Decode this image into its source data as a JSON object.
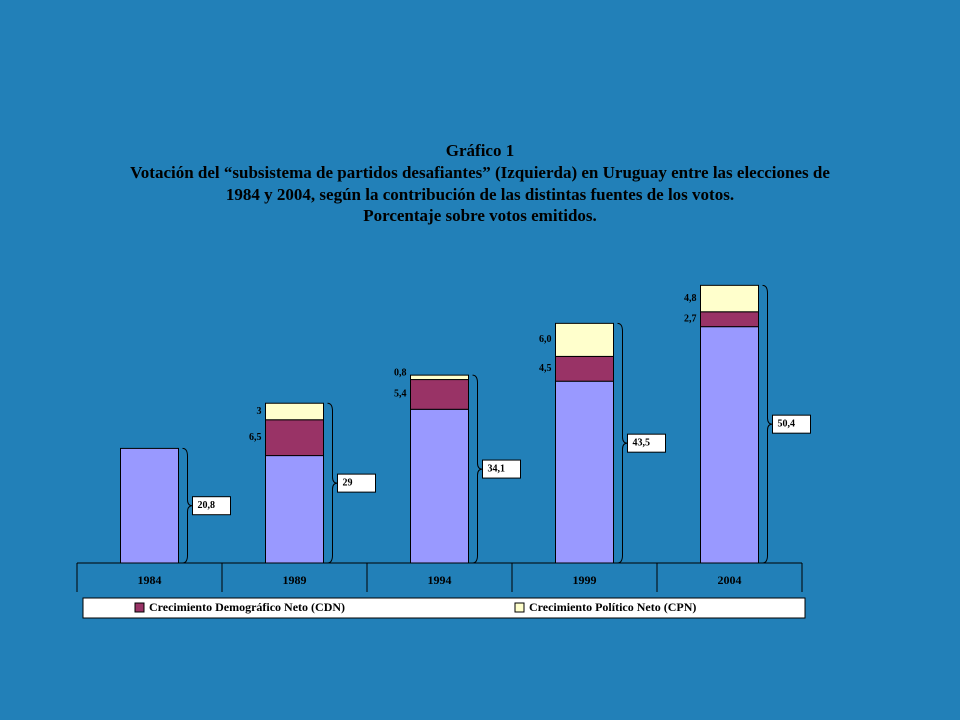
{
  "chart_data": {
    "type": "bar",
    "stacked": true,
    "title": [
      "Gráfico 1",
      "Votación del “subsistema de partidos desafiantes” (Izquierda) en Uruguay entre las elecciones de",
      "1984 y 2004, según la contribución de las distintas fuentes de los votos.",
      "Porcentaje sobre votos emitidos."
    ],
    "categories": [
      "1984",
      "1989",
      "1994",
      "1999",
      "2004"
    ],
    "series": [
      {
        "color": "#9999ff",
        "values": [
          20.8,
          19.5,
          27.9,
          33.0,
          42.9
        ]
      },
      {
        "name": "Crecimiento Demográfico Neto (CDN)",
        "color": "#993366",
        "values": [
          null,
          6.5,
          5.4,
          4.5,
          2.7
        ],
        "value_labels": [
          null,
          "6,5",
          "5,4",
          "4,5",
          "2,7"
        ]
      },
      {
        "name": "Crecimiento Político Neto (CPN)",
        "color": "#ffffcc",
        "values": [
          null,
          3,
          0.8,
          6.0,
          4.8
        ],
        "value_labels": [
          null,
          "3",
          "0,8",
          "6,0",
          "4,8"
        ]
      }
    ],
    "totals": {
      "values": [
        20.8,
        29,
        34.1,
        43.5,
        50.4
      ],
      "value_labels": [
        "20,8",
        "29",
        "34,1",
        "43,5",
        "50,4"
      ]
    },
    "ylim": [
      0,
      55
    ],
    "grid": false,
    "legend": "bottom"
  }
}
